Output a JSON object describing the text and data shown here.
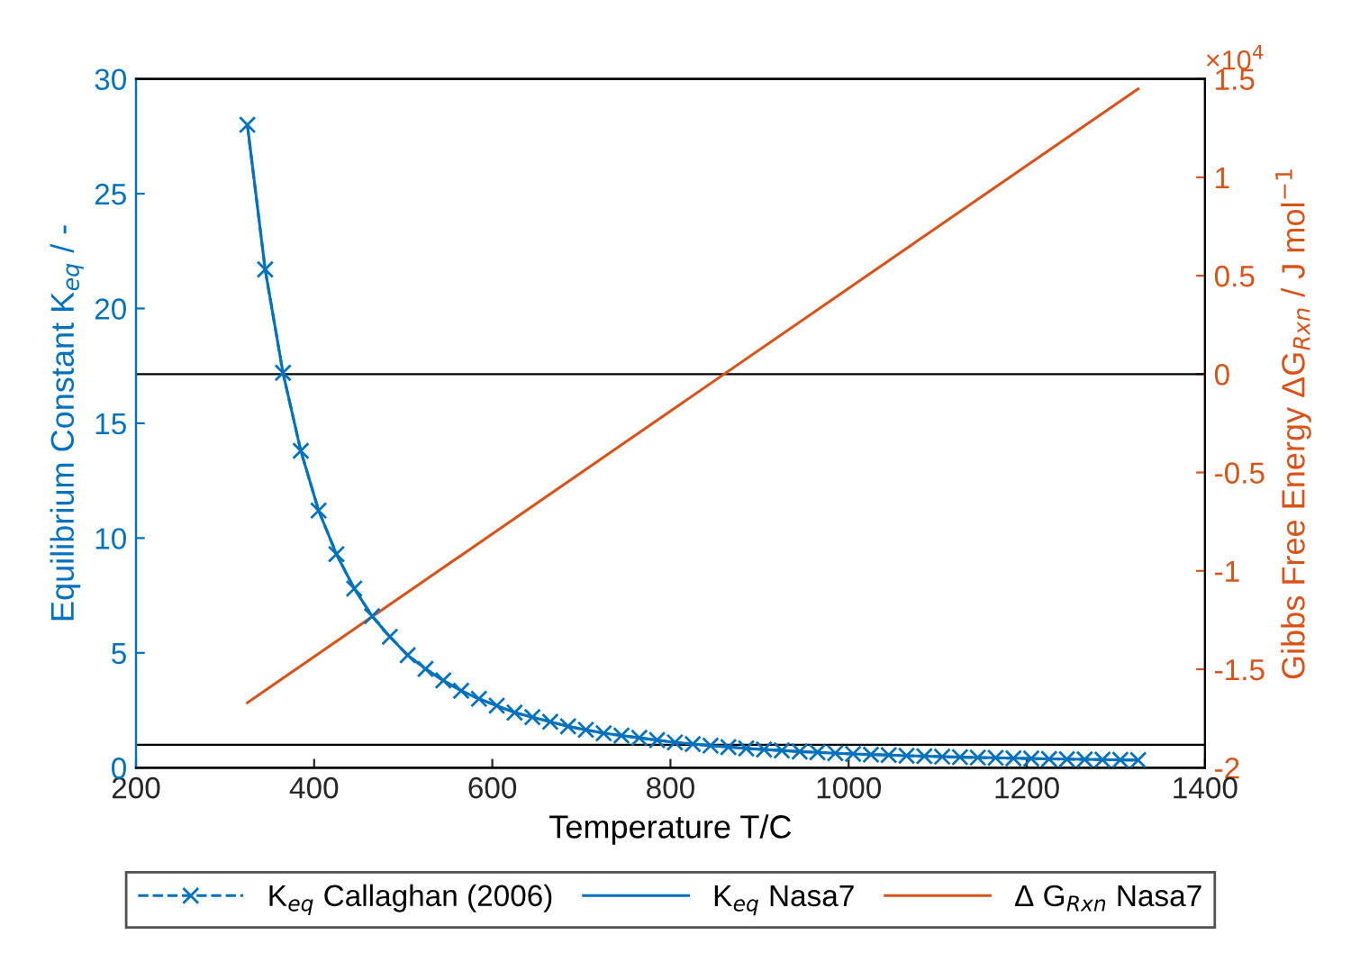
{
  "chart_data": {
    "type": "line",
    "xlabel": "Temperature T/C",
    "ylabel": "Equilibrium Constant K$_{eq}$ / -",
    "y2label": "Gibbs Free Energy ΔG$_{Rxn}$ / J mol$^{−1}$",
    "xlim": [
      200,
      1400
    ],
    "xticks": [
      200,
      400,
      600,
      800,
      1000,
      1200,
      1400
    ],
    "ylim": [
      0,
      30
    ],
    "yticks": [
      0,
      5,
      10,
      15,
      20,
      25,
      30
    ],
    "y2lim": [
      -2,
      1.5
    ],
    "y2ticks": [
      -2,
      -1.5,
      -1,
      -0.5,
      0,
      0.5,
      1,
      1.5
    ],
    "annotations": [
      "×10$^{4}$"
    ],
    "legend": "bottom",
    "grid": false,
    "ref_lines": [
      {
        "axis": "y",
        "value": 1,
        "color": "#000000"
      },
      {
        "axis": "y2",
        "value": 0,
        "color": "#000000"
      }
    ],
    "series": [
      {
        "name": "K$_{eq}$ Callaghan (2006)",
        "color": "#0072bd",
        "marker": "cross",
        "line_style": "dashed",
        "x": [
          325,
          345,
          365,
          385,
          405,
          425,
          445,
          465,
          485,
          505,
          525,
          545,
          565,
          585,
          605,
          625,
          645,
          665,
          685,
          705,
          725,
          745,
          765,
          785,
          805,
          825,
          845,
          865,
          885,
          905,
          925,
          945,
          965,
          985,
          1005,
          1025,
          1045,
          1065,
          1085,
          1105,
          1125,
          1145,
          1165,
          1185,
          1205,
          1225,
          1245,
          1265,
          1285,
          1305,
          1325
        ],
        "values": [
          28.0,
          21.7,
          17.2,
          13.8,
          11.2,
          9.3,
          7.8,
          6.6,
          5.7,
          4.9,
          4.3,
          3.8,
          3.35,
          3.0,
          2.7,
          2.4,
          2.2,
          2.0,
          1.8,
          1.65,
          1.5,
          1.4,
          1.3,
          1.2,
          1.1,
          1.03,
          0.96,
          0.9,
          0.84,
          0.79,
          0.75,
          0.7,
          0.67,
          0.63,
          0.6,
          0.57,
          0.55,
          0.52,
          0.5,
          0.48,
          0.46,
          0.44,
          0.43,
          0.41,
          0.4,
          0.38,
          0.37,
          0.36,
          0.35,
          0.34,
          0.33
        ]
      },
      {
        "name": "K$_{eq}$ Nasa7",
        "color": "#0072bd",
        "marker": "none",
        "line_style": "solid",
        "x": [
          325,
          345,
          365,
          385,
          405,
          425,
          445,
          465,
          485,
          505,
          525,
          545,
          565,
          585,
          605,
          625,
          645,
          665,
          685,
          705,
          725,
          745,
          765,
          785,
          805,
          825,
          845,
          865,
          885,
          905,
          925,
          945,
          965,
          985,
          1005,
          1025,
          1045,
          1065,
          1085,
          1105,
          1125,
          1145,
          1165,
          1185,
          1205,
          1225,
          1245,
          1265,
          1285,
          1305,
          1325
        ],
        "values": [
          28.0,
          21.7,
          17.2,
          13.8,
          11.2,
          9.3,
          7.8,
          6.6,
          5.7,
          4.9,
          4.3,
          3.8,
          3.35,
          3.0,
          2.7,
          2.4,
          2.2,
          2.0,
          1.8,
          1.65,
          1.5,
          1.4,
          1.3,
          1.2,
          1.1,
          1.03,
          0.96,
          0.9,
          0.84,
          0.79,
          0.75,
          0.7,
          0.67,
          0.63,
          0.6,
          0.57,
          0.55,
          0.52,
          0.5,
          0.48,
          0.46,
          0.44,
          0.43,
          0.41,
          0.4,
          0.38,
          0.37,
          0.36,
          0.35,
          0.34,
          0.33
        ]
      },
      {
        "name": "Δ G$_{Rxn}$ Nasa7",
        "color": "#d95319",
        "marker": "none",
        "line_style": "solid",
        "axis": "y2",
        "x": [
          325,
          1325
        ],
        "values": [
          -1.67,
          1.45
        ]
      }
    ]
  }
}
